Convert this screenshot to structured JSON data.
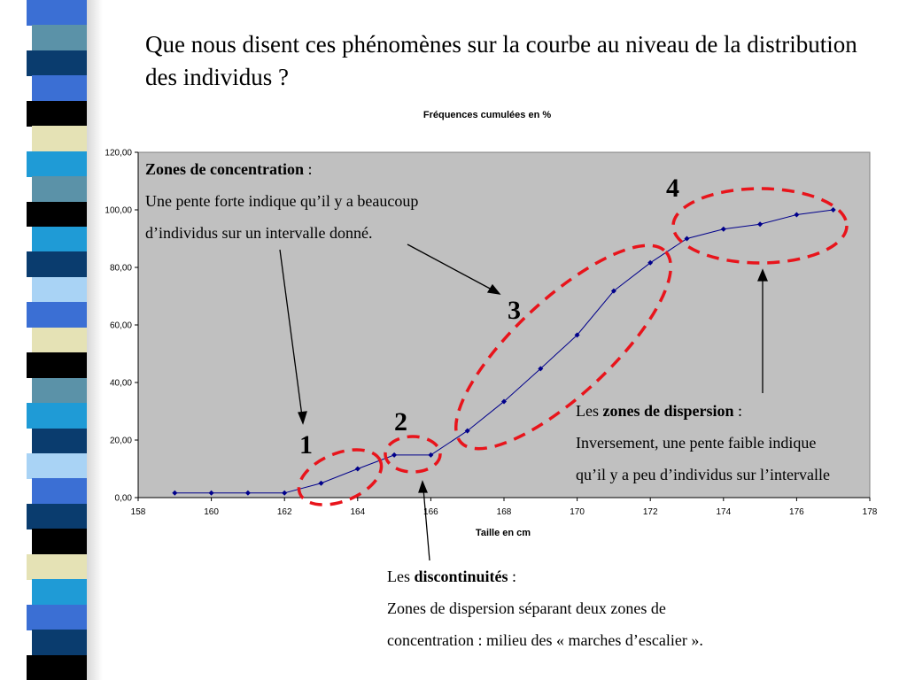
{
  "slide": {
    "title": "Que nous disent ces phénomènes sur la courbe au niveau de la distribution des individus ?",
    "stripe_colors": [
      "#3b6fd4",
      "#5b92a8",
      "#0a3c6e",
      "#3b6fd4",
      "#000000",
      "#e5e2b5",
      "#1f9bd6",
      "#5b92a8",
      "#000000",
      "#1f9bd6",
      "#0a3c6e",
      "#a9d3f5",
      "#3b6fd4",
      "#e5e2b5",
      "#000000",
      "#5b92a8",
      "#1f9bd6",
      "#0a3c6e",
      "#a9d3f5",
      "#3b6fd4",
      "#0a3c6e",
      "#000000",
      "#e5e2b5",
      "#1f9bd6",
      "#3b6fd4",
      "#0a3c6e",
      "#000000"
    ]
  },
  "chart_data": {
    "type": "line",
    "title": "Fréquences cumulées en %",
    "xlabel": "Taille en cm",
    "ylabel": "",
    "xlim": [
      158,
      178
    ],
    "ylim": [
      0,
      120
    ],
    "x_ticks": [
      "158",
      "160",
      "162",
      "164",
      "166",
      "168",
      "170",
      "172",
      "174",
      "176",
      "178"
    ],
    "y_ticks": [
      "0,00",
      "20,00",
      "40,00",
      "60,00",
      "80,00",
      "100,00",
      "120,00"
    ],
    "grid": false,
    "plot_background": "#c0c0c0",
    "line_color": "#00008b",
    "series": [
      {
        "x": [
          159,
          160,
          161,
          162,
          163,
          164,
          165,
          166,
          167,
          168,
          169,
          170,
          171,
          172,
          173,
          174,
          175,
          176,
          177
        ],
        "values": [
          1.6,
          1.6,
          1.6,
          1.6,
          5.0,
          10.0,
          14.8,
          14.8,
          23.2,
          33.4,
          44.8,
          56.5,
          71.8,
          81.6,
          90.0,
          93.3,
          95.0,
          98.3,
          100.0
        ]
      }
    ]
  },
  "annotations": {
    "concentration_title": "Zones de concentration",
    "concentration_colon": " :",
    "concentration_line1": "Une pente forte indique qu’il y a beaucoup",
    "concentration_line2": "d’individus sur un intervalle donné.",
    "dispersion_prefix": "Les ",
    "dispersion_title": "zones de dispersion",
    "dispersion_colon": " :",
    "dispersion_line1": "Inversement, une pente faible indique",
    "dispersion_line2": "qu’il y a peu d’individus sur l’intervalle",
    "discontinuity_prefix": "Les ",
    "discontinuity_title": "discontinuités",
    "discontinuity_colon": " :",
    "discontinuity_line1": "Zones de dispersion séparant deux zones de",
    "discontinuity_line2": "concentration : milieu des « marches d’escalier ».",
    "num1": "1",
    "num2": "2",
    "num3": "3",
    "num4": "4",
    "ellipse_color": "#e8141b"
  }
}
